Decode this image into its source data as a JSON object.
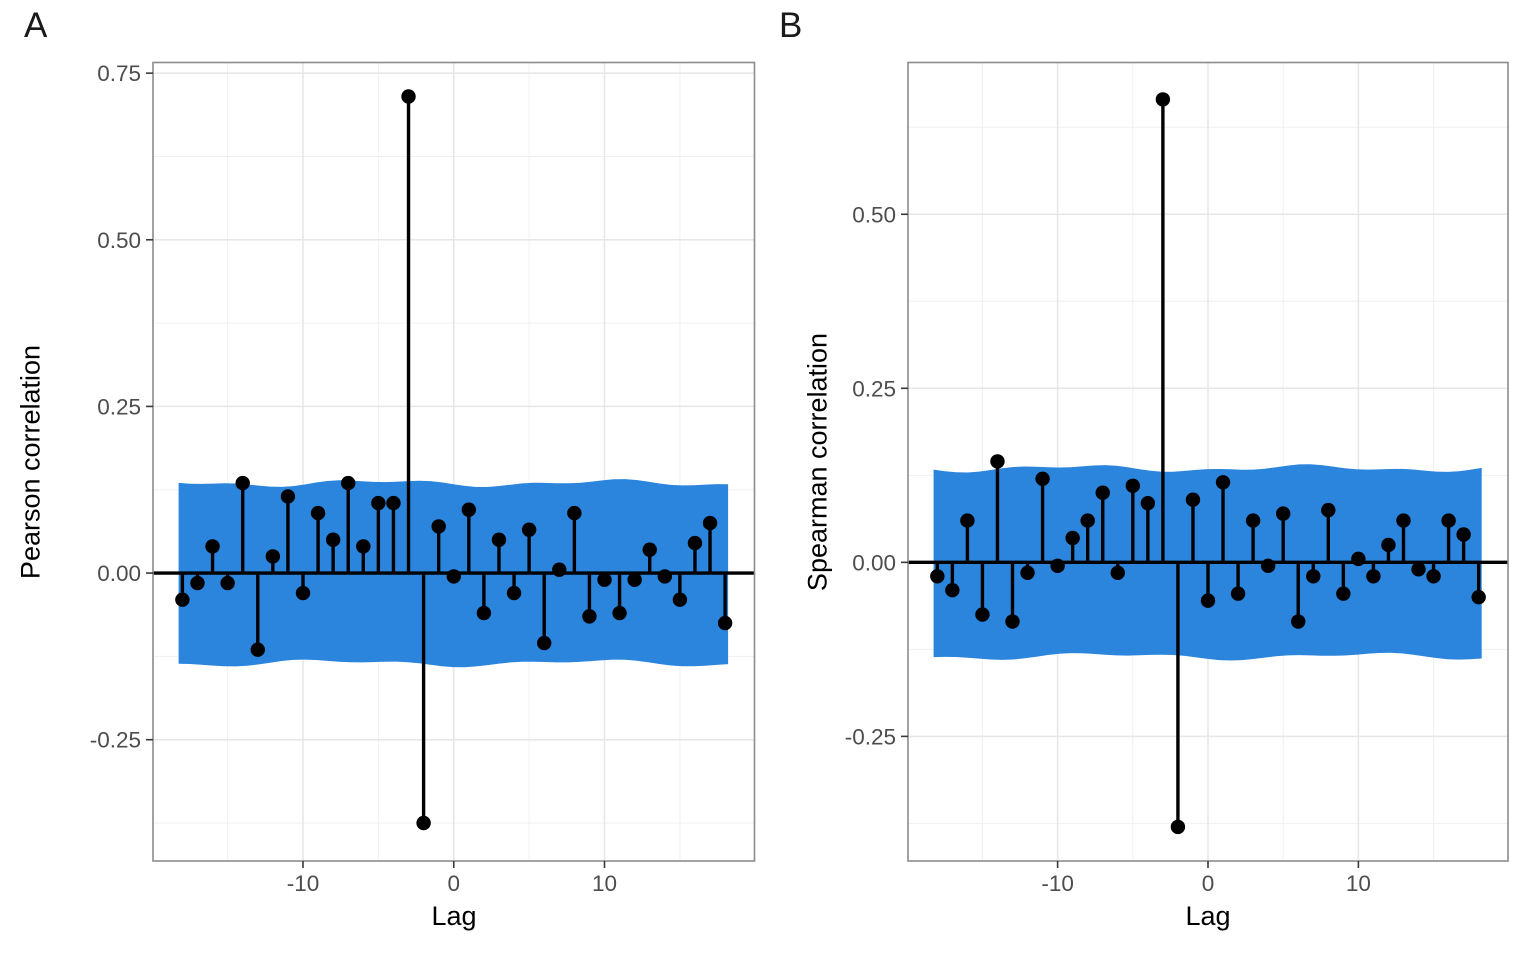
{
  "figure": {
    "background": "#ffffff",
    "colors": {
      "band_blue": "#2b85dd",
      "stem_black": "#000000",
      "grid_major": "#e6e6e6",
      "grid_minor": "#f0f0f0",
      "panel_border": "#8c8c8c",
      "tick_mark": "#3a3a3a",
      "tick_label": "#4d4d4d",
      "title_text": "#000000"
    }
  },
  "chart_data": [
    {
      "type": "bar",
      "variant": "stem-lollipop cross-correlation (CCF) plot",
      "panel_label": "A",
      "title": "",
      "xlabel": "Lag",
      "ylabel": "Pearson correlation",
      "x": [
        -18,
        -17,
        -16,
        -15,
        -14,
        -13,
        -12,
        -11,
        -10,
        -9,
        -8,
        -7,
        -6,
        -5,
        -4,
        -3,
        -2,
        -1,
        0,
        1,
        2,
        3,
        4,
        5,
        6,
        7,
        8,
        9,
        10,
        11,
        12,
        13,
        14,
        15,
        16,
        17,
        18
      ],
      "values": [
        -0.04,
        -0.015,
        0.04,
        -0.015,
        0.135,
        -0.115,
        0.025,
        0.115,
        -0.03,
        0.09,
        0.05,
        0.135,
        0.04,
        0.105,
        0.105,
        0.715,
        -0.375,
        0.07,
        -0.005,
        0.095,
        -0.06,
        0.05,
        -0.03,
        0.065,
        -0.105,
        0.005,
        0.09,
        -0.065,
        -0.01,
        -0.06,
        -0.01,
        0.035,
        -0.005,
        -0.04,
        0.045,
        0.075,
        -0.075
      ],
      "xlim": [
        -19.95,
        19.95
      ],
      "ylim": [
        -0.432,
        0.766
      ],
      "x_ticks": [
        -10,
        0,
        10
      ],
      "x_tick_labels": [
        "-10",
        "0",
        "10"
      ],
      "x_minor_ticks": [
        -15,
        -5,
        5,
        15
      ],
      "y_ticks": [
        0.75,
        0.5,
        0.25,
        0.0,
        -0.25
      ],
      "y_tick_labels": [
        "0.75",
        "0.50",
        "0.25",
        "0.00",
        "-0.25"
      ],
      "y_minor_ticks": [
        0.625,
        0.375,
        0.125,
        -0.125,
        -0.375
      ],
      "confidence_band": {
        "upper": 0.135,
        "lower": -0.135,
        "x_extent": [
          -18.25,
          18.2
        ],
        "color": "#2b85dd",
        "style": "wavy-sketch"
      },
      "grid": true,
      "legend": "none"
    },
    {
      "type": "bar",
      "variant": "stem-lollipop cross-correlation (CCF) plot",
      "panel_label": "B",
      "title": "",
      "xlabel": "Lag",
      "ylabel": "Spearman correlation",
      "x": [
        -18,
        -17,
        -16,
        -15,
        -14,
        -13,
        -12,
        -11,
        -10,
        -9,
        -8,
        -7,
        -6,
        -5,
        -4,
        -3,
        -2,
        -1,
        0,
        1,
        2,
        3,
        4,
        5,
        6,
        7,
        8,
        9,
        10,
        11,
        12,
        13,
        14,
        15,
        16,
        17,
        18
      ],
      "values": [
        -0.02,
        -0.04,
        0.06,
        -0.075,
        0.145,
        -0.085,
        -0.015,
        0.12,
        -0.005,
        0.035,
        0.06,
        0.1,
        -0.015,
        0.11,
        0.085,
        0.665,
        -0.38,
        0.09,
        -0.055,
        0.115,
        -0.045,
        0.06,
        -0.005,
        0.07,
        -0.085,
        -0.02,
        0.075,
        -0.045,
        0.005,
        -0.02,
        0.025,
        0.06,
        -0.01,
        -0.02,
        0.06,
        0.04,
        -0.05
      ],
      "xlim": [
        -19.95,
        19.95
      ],
      "ylim": [
        -0.429,
        0.718
      ],
      "x_ticks": [
        -10,
        0,
        10
      ],
      "x_tick_labels": [
        "-10",
        "0",
        "10"
      ],
      "x_minor_ticks": [
        -15,
        -5,
        5,
        15
      ],
      "y_ticks": [
        0.5,
        0.25,
        0.0,
        -0.25
      ],
      "y_tick_labels": [
        "0.50",
        "0.25",
        "0.00",
        "-0.25"
      ],
      "y_minor_ticks": [
        0.625,
        0.375,
        0.125,
        -0.125,
        -0.375
      ],
      "confidence_band": {
        "upper": 0.135,
        "lower": -0.135,
        "x_extent": [
          -18.25,
          18.2
        ],
        "color": "#2b85dd",
        "style": "wavy-sketch"
      },
      "grid": true,
      "legend": "none"
    }
  ]
}
